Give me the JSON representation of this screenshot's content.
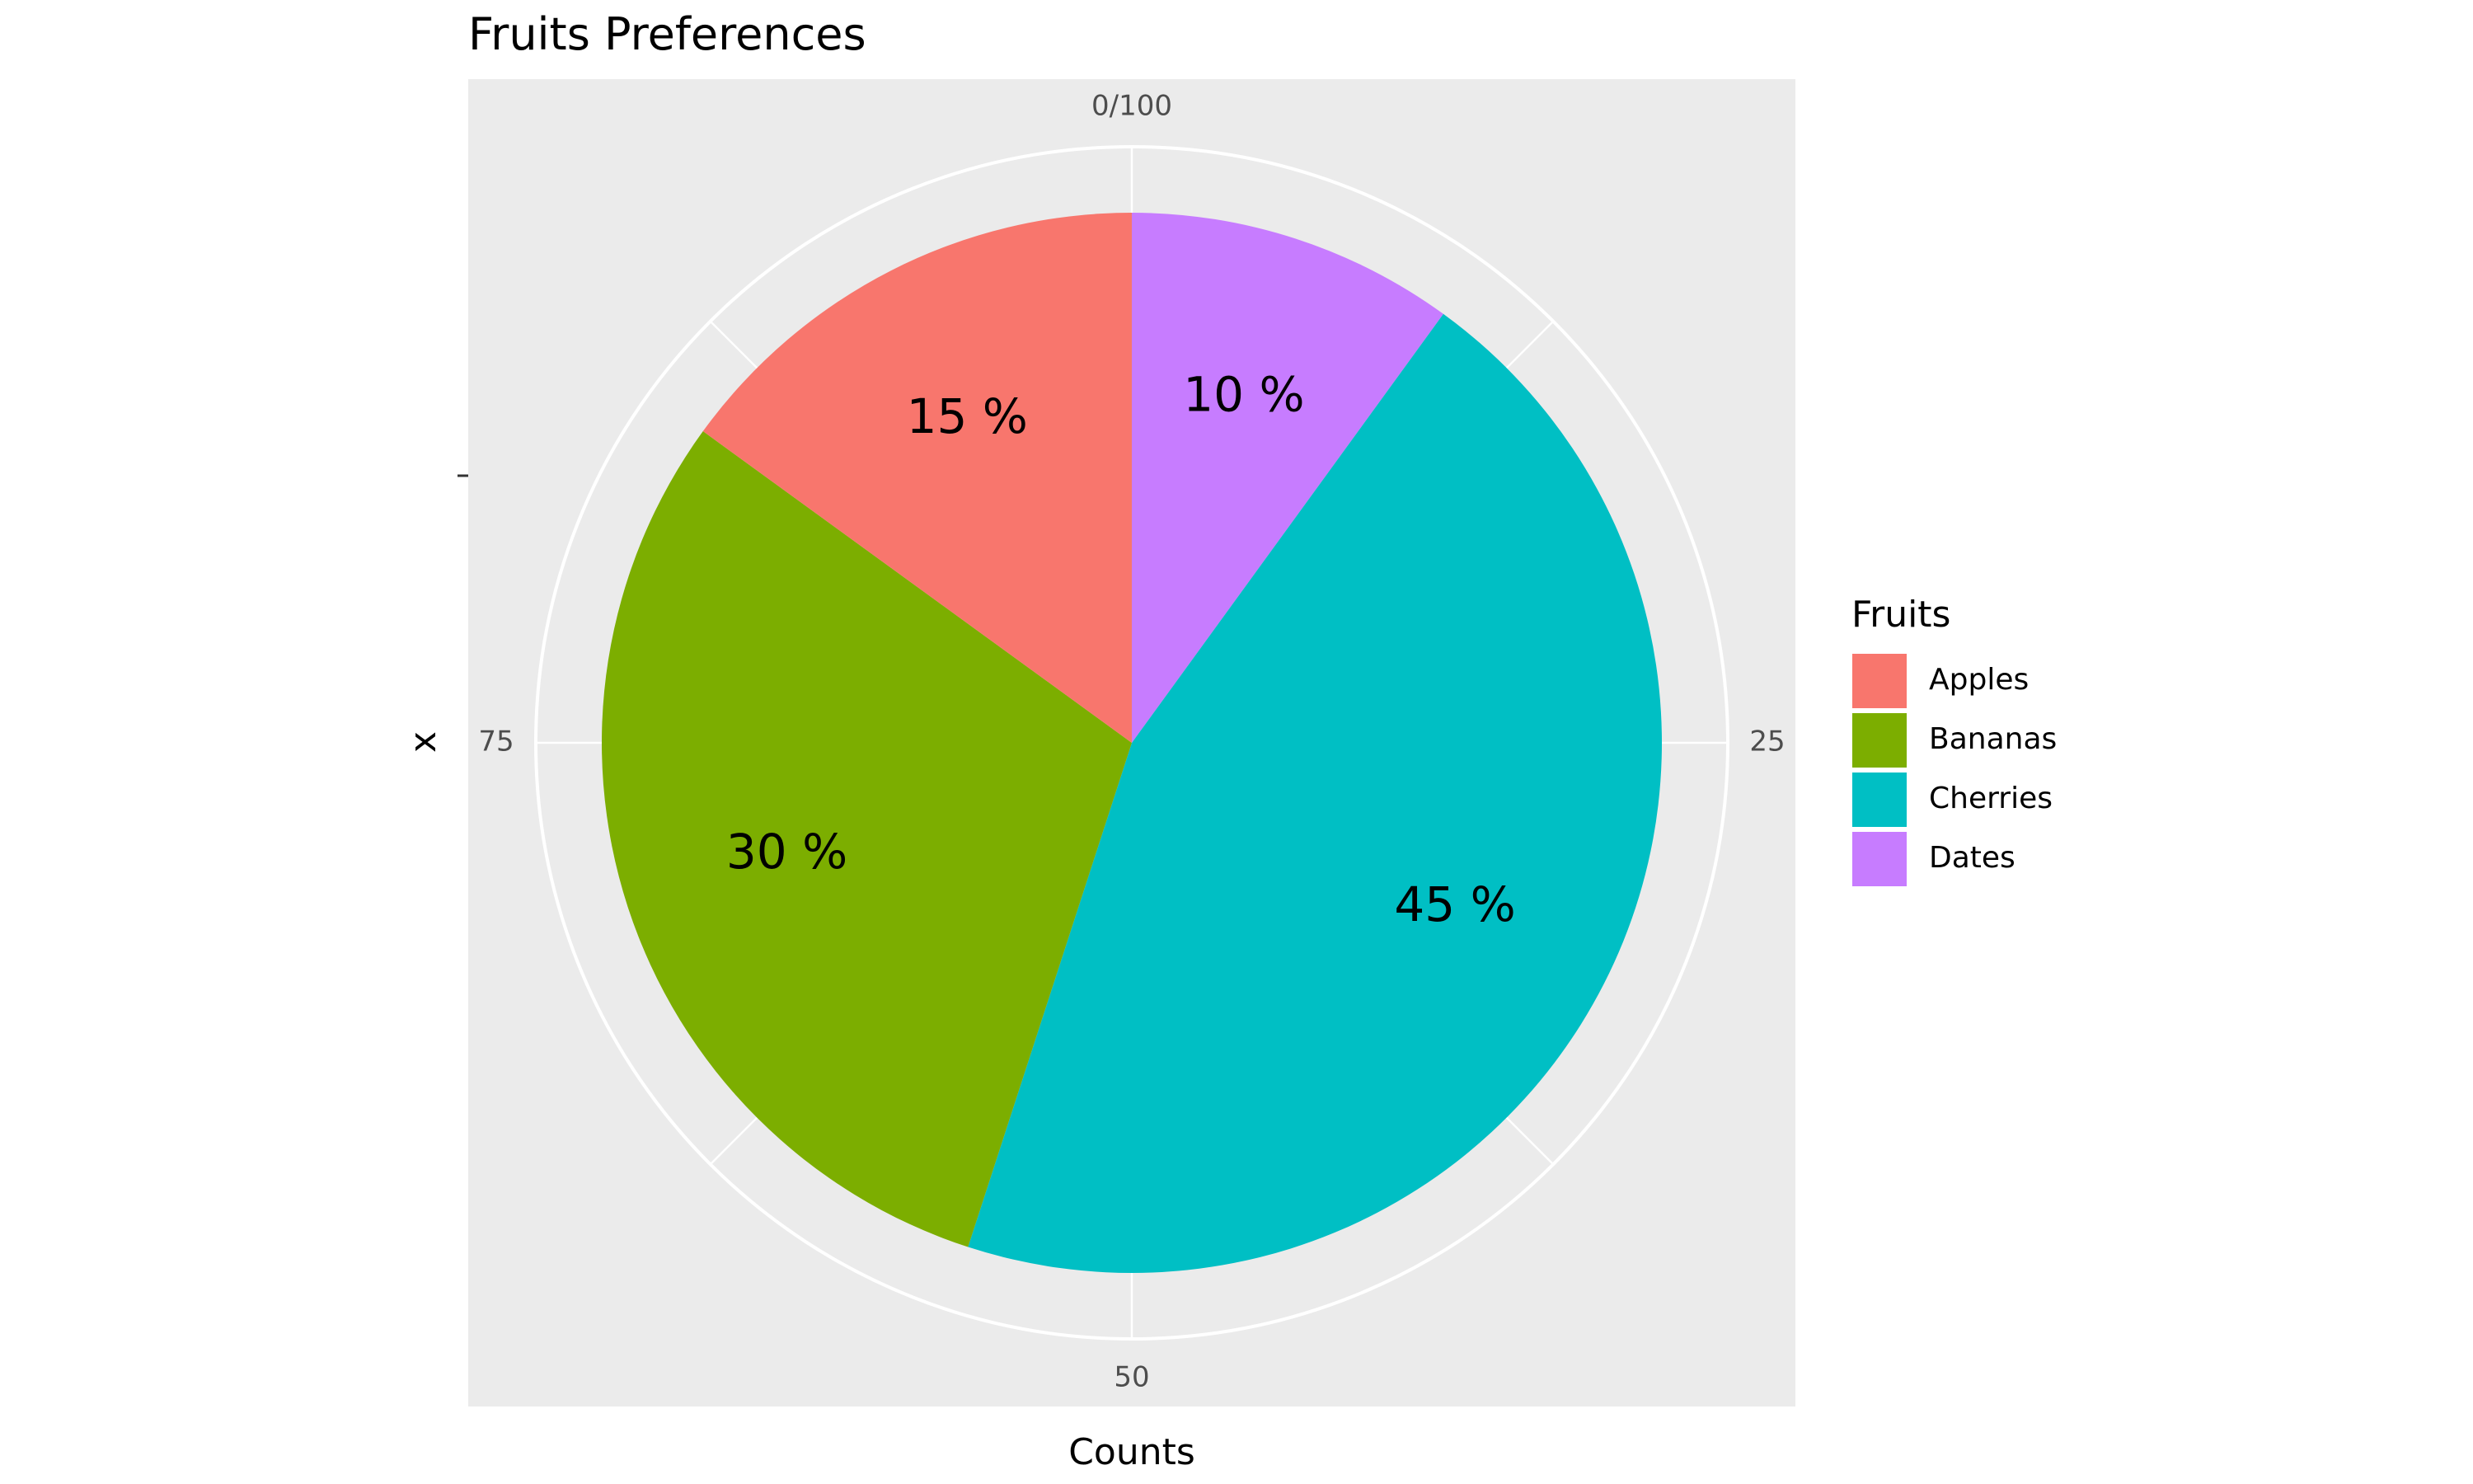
{
  "chart_data": {
    "type": "pie",
    "title": "Fruits Preferences",
    "xlabel": "Counts",
    "ylabel": "x",
    "categories": [
      "Apples",
      "Bananas",
      "Cherries",
      "Dates"
    ],
    "values": [
      15,
      30,
      45,
      10
    ],
    "slice_labels": [
      "15 %",
      "30 %",
      "45 %",
      "10 %"
    ],
    "colors": [
      "#F8766D",
      "#7CAE00",
      "#00BFC4",
      "#C77CFF"
    ],
    "theta_range": [
      0,
      100
    ],
    "theta_ticks": [
      {
        "value": 0,
        "label": "0/100"
      },
      {
        "value": 25,
        "label": "25"
      },
      {
        "value": 50,
        "label": "50"
      },
      {
        "value": 75,
        "label": "75"
      }
    ],
    "legend": {
      "title": "Fruits",
      "position": "right"
    },
    "panel_background": "#EBEBEB",
    "grid_color": "#FFFFFF"
  }
}
